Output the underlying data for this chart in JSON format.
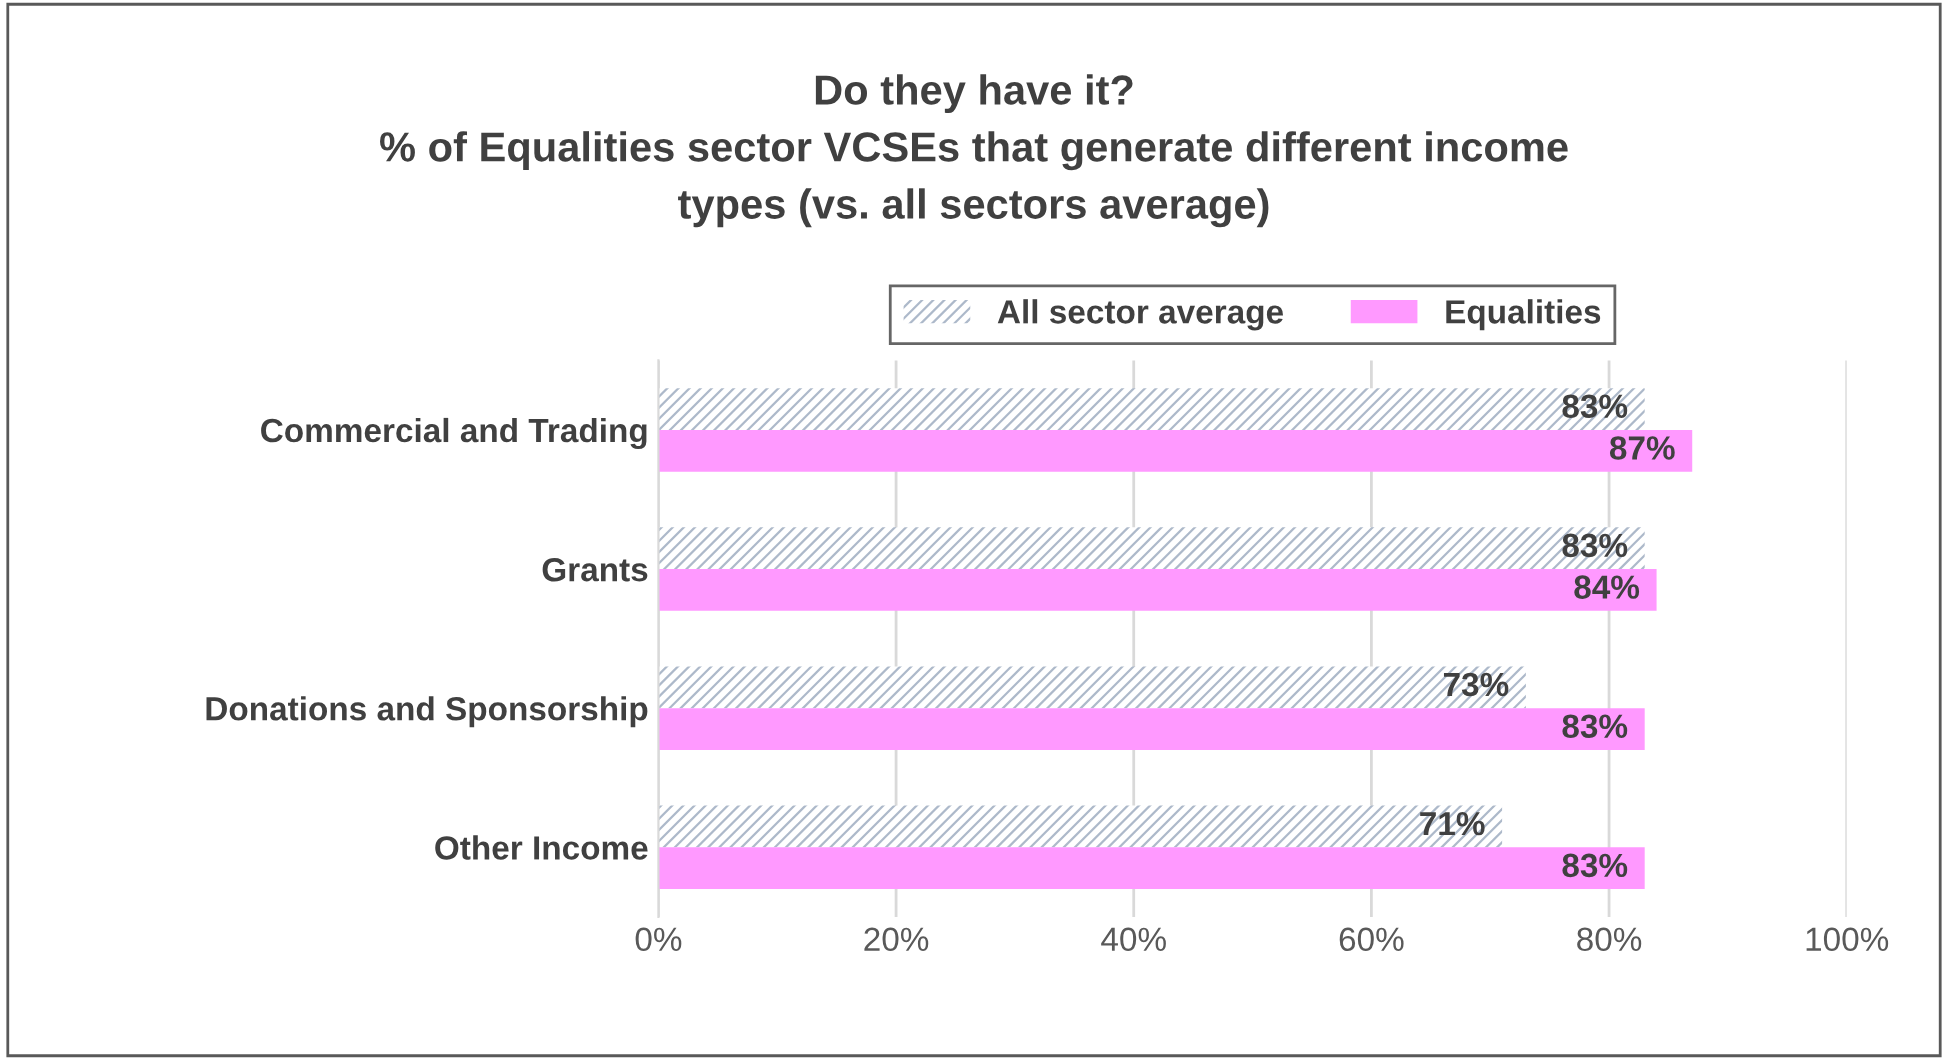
{
  "chart_data": {
    "type": "bar",
    "orientation": "horizontal",
    "title": "Do they have it?\n% of Equalities sector VCSEs that generate different income\ntypes (vs. all sectors average)",
    "categories": [
      "Commercial and Trading",
      "Grants",
      "Donations and Sponsorship",
      "Other Income"
    ],
    "series": [
      {
        "name": "All sector average",
        "color": "#adb9ca",
        "values": [
          83,
          83,
          73,
          71
        ],
        "value_labels": [
          "83%",
          "83%",
          "73%",
          "71%"
        ]
      },
      {
        "name": "Equalities",
        "color": "#ff99ff",
        "values": [
          87,
          84,
          83,
          83
        ],
        "value_labels": [
          "87%",
          "84%",
          "83%",
          "83%"
        ]
      }
    ],
    "xlim": [
      0,
      100
    ],
    "xticks": [
      {
        "value": 0,
        "label": "0%"
      },
      {
        "value": 20,
        "label": "20%"
      },
      {
        "value": 40,
        "label": "40%"
      },
      {
        "value": 60,
        "label": "60%"
      },
      {
        "value": 80,
        "label": "80%"
      },
      {
        "value": 100,
        "label": "100%"
      }
    ],
    "grid": "x",
    "legend": "top"
  }
}
